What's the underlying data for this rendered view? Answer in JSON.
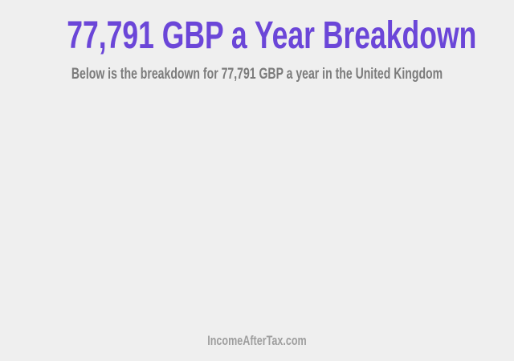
{
  "header": {
    "title": "77,791 GBP a Year Breakdown",
    "subtitle": "Below is the breakdown for 77,791 GBP a year in the United Kingdom"
  },
  "footer": {
    "brand": "IncomeAfterTax.com"
  },
  "colors": {
    "background": "#efefef",
    "accent": "#6b46d8",
    "subtitle_text": "#7b7b7b",
    "brand_text": "#9e9e9e"
  }
}
